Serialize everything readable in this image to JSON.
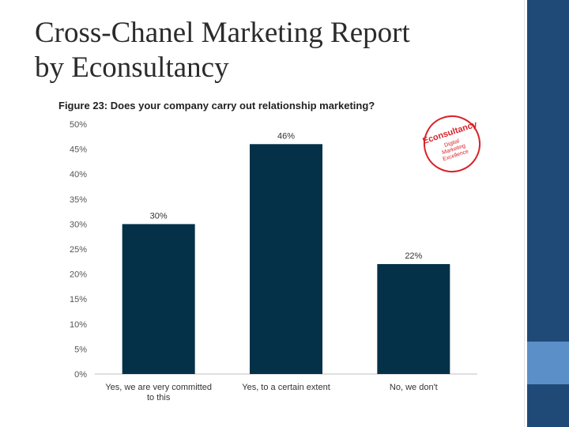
{
  "slide": {
    "title_line1": "Cross-Chanel Marketing Report",
    "title_line2": "by Econsultancy"
  },
  "figure": {
    "title": "Figure 23: Does your company carry out relationship marketing?",
    "stamp": {
      "brand": "Econsultancy",
      "line1": "Digital",
      "line2": "Marketing",
      "line3": "Excellence"
    }
  },
  "colors": {
    "bar": "#043147",
    "accent_red": "#d8232a",
    "side_bar": "#1f4a78",
    "side_accent": "#5b8fc8"
  },
  "chart_data": {
    "type": "bar",
    "title": "Figure 23: Does your company carry out relationship marketing?",
    "categories": [
      [
        "Yes, we are very committed",
        "to this"
      ],
      [
        "Yes, to a certain extent"
      ],
      [
        "No, we don't"
      ]
    ],
    "values": [
      30,
      46,
      22
    ],
    "data_labels": [
      "30%",
      "46%",
      "22%"
    ],
    "yticks": [
      "0%",
      "5%",
      "10%",
      "15%",
      "20%",
      "25%",
      "30%",
      "35%",
      "40%",
      "45%",
      "50%"
    ],
    "ylim": [
      0,
      50
    ],
    "grid": false
  }
}
